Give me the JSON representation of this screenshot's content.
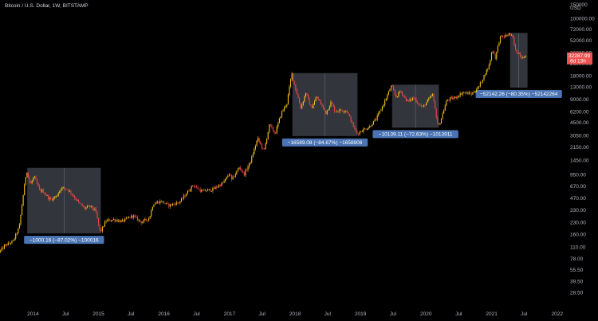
{
  "title": "Bitcoin / U.S. Dollar, 1W, BITSTAMP",
  "colors": {
    "background": "#000000",
    "candle_up": "#f5c11a",
    "candle_down": "#e8474a",
    "range_fill": "#9aa6b6",
    "range_label": "#4a74b4",
    "price_tag": "#ef5350",
    "axis_text": "#b2b5be"
  },
  "chart_data": {
    "type": "candlestick",
    "title": "Bitcoin / U.S. Dollar, 1W, BITSTAMP",
    "y_scale": "log",
    "ylim": [
      22,
      150000
    ],
    "y_unit": "USD",
    "y_ticks": [
      150000,
      100000,
      72000,
      52000,
      36000,
      26000,
      18000,
      13000,
      9000,
      6200,
      4500,
      3050,
      2150,
      1450,
      950,
      670,
      470,
      330,
      230,
      160,
      110,
      78.0,
      55.5,
      39.5,
      28.5
    ],
    "y_tick_labels": [
      "150000",
      "100000.00",
      "72000.00",
      "52000.00",
      "36000.00",
      "26000.00",
      "18000.00",
      "13000.00",
      "9000.00",
      "6200.00",
      "4500.00",
      "3050.00",
      "2150.00",
      "1450.00",
      "950.00",
      "670.00",
      "470.00",
      "330.00",
      "230.00",
      "160.00",
      "110.00",
      "78.00",
      "55.50",
      "39.50",
      "28.50"
    ],
    "x_ticks": [
      "2014",
      "Jul",
      "2015",
      "Jul",
      "2016",
      "Jul",
      "2017",
      "Jul",
      "2018",
      "Jul",
      "2019",
      "Jul",
      "2020",
      "Jul",
      "2021",
      "Jul",
      "2022"
    ],
    "xlim": [
      "2013-07-01",
      "2022-03-01"
    ],
    "price_path": [
      [
        "2013-07-01",
        95
      ],
      [
        "2013-08-01",
        115
      ],
      [
        "2013-09-15",
        130
      ],
      [
        "2013-10-20",
        200
      ],
      [
        "2013-11-10",
        500
      ],
      [
        "2013-11-30",
        1100
      ],
      [
        "2013-12-20",
        700
      ],
      [
        "2014-01-10",
        900
      ],
      [
        "2014-02-10",
        600
      ],
      [
        "2014-03-01",
        580
      ],
      [
        "2014-04-10",
        450
      ],
      [
        "2014-05-15",
        500
      ],
      [
        "2014-06-10",
        640
      ],
      [
        "2014-07-15",
        620
      ],
      [
        "2014-08-20",
        500
      ],
      [
        "2014-09-20",
        400
      ],
      [
        "2014-10-20",
        350
      ],
      [
        "2014-11-20",
        370
      ],
      [
        "2014-12-20",
        320
      ],
      [
        "2015-01-14",
        170
      ],
      [
        "2015-02-15",
        240
      ],
      [
        "2015-04-01",
        250
      ],
      [
        "2015-05-15",
        235
      ],
      [
        "2015-07-15",
        280
      ],
      [
        "2015-09-01",
        230
      ],
      [
        "2015-10-15",
        260
      ],
      [
        "2015-11-05",
        400
      ],
      [
        "2015-12-20",
        430
      ],
      [
        "2016-02-01",
        380
      ],
      [
        "2016-04-01",
        420
      ],
      [
        "2016-06-15",
        700
      ],
      [
        "2016-08-01",
        580
      ],
      [
        "2016-10-01",
        610
      ],
      [
        "2016-12-01",
        750
      ],
      [
        "2017-01-05",
        1000
      ],
      [
        "2017-01-15",
        800
      ],
      [
        "2017-03-01",
        1200
      ],
      [
        "2017-03-25",
        950
      ],
      [
        "2017-05-01",
        1400
      ],
      [
        "2017-06-10",
        2800
      ],
      [
        "2017-07-15",
        1900
      ],
      [
        "2017-08-15",
        4200
      ],
      [
        "2017-09-15",
        3200
      ],
      [
        "2017-10-20",
        6000
      ],
      [
        "2017-11-20",
        8000
      ],
      [
        "2017-12-17",
        19500
      ],
      [
        "2018-01-01",
        14000
      ],
      [
        "2018-02-06",
        6900
      ],
      [
        "2018-03-05",
        11000
      ],
      [
        "2018-04-05",
        6800
      ],
      [
        "2018-05-05",
        9700
      ],
      [
        "2018-06-25",
        6000
      ],
      [
        "2018-07-25",
        8300
      ],
      [
        "2018-08-15",
        6300
      ],
      [
        "2018-09-15",
        6500
      ],
      [
        "2018-10-20",
        6400
      ],
      [
        "2018-11-20",
        4300
      ],
      [
        "2018-12-15",
        3200
      ],
      [
        "2019-01-15",
        3600
      ],
      [
        "2019-02-20",
        3900
      ],
      [
        "2019-04-02",
        5000
      ],
      [
        "2019-05-15",
        8000
      ],
      [
        "2019-06-26",
        13500
      ],
      [
        "2019-07-20",
        9500
      ],
      [
        "2019-08-15",
        11500
      ],
      [
        "2019-09-25",
        8300
      ],
      [
        "2019-10-26",
        9400
      ],
      [
        "2019-12-15",
        7000
      ],
      [
        "2020-02-10",
        10300
      ],
      [
        "2020-03-13",
        3850
      ],
      [
        "2020-04-30",
        8800
      ],
      [
        "2020-06-15",
        9400
      ],
      [
        "2020-07-27",
        11000
      ],
      [
        "2020-09-15",
        10500
      ],
      [
        "2020-10-25",
        13000
      ],
      [
        "2020-11-25",
        18500
      ],
      [
        "2020-12-20",
        24000
      ],
      [
        "2021-01-08",
        40000
      ],
      [
        "2021-01-25",
        31000
      ],
      [
        "2021-02-20",
        57000
      ],
      [
        "2021-03-15",
        58000
      ],
      [
        "2021-04-14",
        63000
      ],
      [
        "2021-05-01",
        57000
      ],
      [
        "2021-05-19",
        37000
      ],
      [
        "2021-06-05",
        36000
      ],
      [
        "2021-06-22",
        31000
      ],
      [
        "2021-07-01",
        33000
      ],
      [
        "2021-07-08",
        32287.99
      ]
    ],
    "annotations": [
      {
        "from": "2013-11-30",
        "to": "2015-01-14",
        "high": 1165,
        "low": 165,
        "label": "−1000.16 (−87.02%) −100016"
      },
      {
        "from": "2017-12-17",
        "to": "2018-12-15",
        "high": 19600,
        "low": 3000,
        "label": "−16589.08 (−84.67%) −1658908"
      },
      {
        "from": "2019-06-26",
        "to": "2020-03-13",
        "high": 13900,
        "low": 3850,
        "label": "−10139.11 (−72.63%) −1013911"
      },
      {
        "from": "2021-04-14",
        "to": "2021-07-20",
        "high": 64900,
        "low": 12700,
        "label": "−52142.26 (−80.35%) −52142264"
      }
    ],
    "last_price": "32287.99",
    "countdown": "6d 13h"
  }
}
